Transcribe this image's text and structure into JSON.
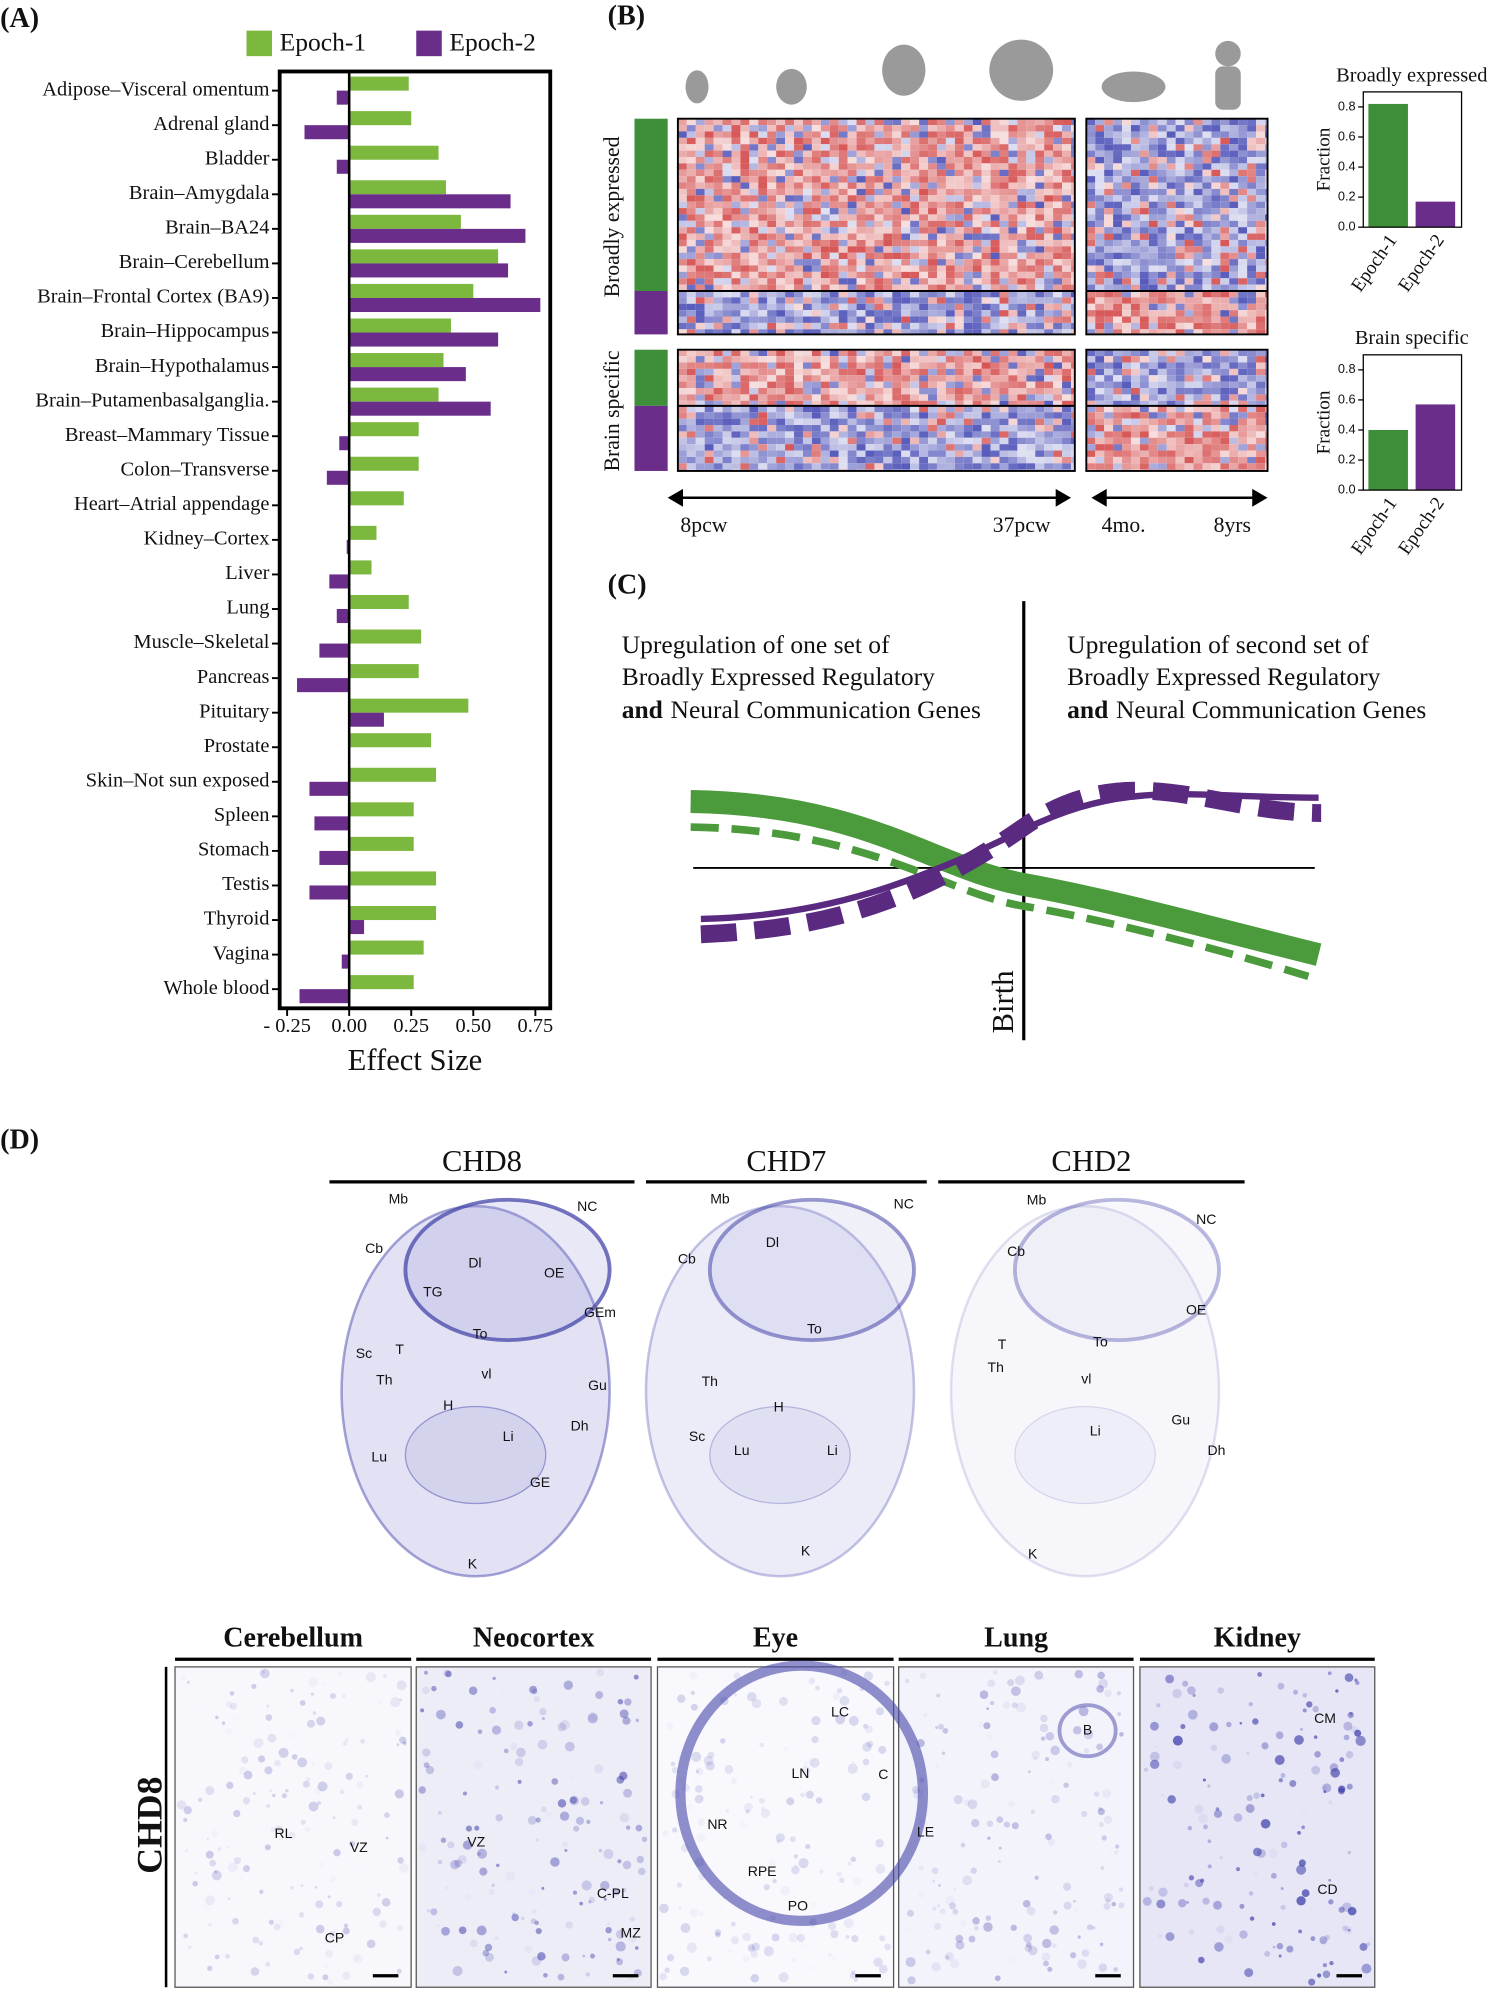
{
  "panel_labels": [
    "(A)",
    "(B)",
    "(C)",
    "(D)"
  ],
  "chart_data": [
    {
      "type": "hbar",
      "xlabel": "Effect Size",
      "categories": [
        "Adipose–Visceral omentum",
        "Adrenal gland",
        "Bladder",
        "Brain–Amygdala",
        "Brain–BA24",
        "Brain–Cerebellum",
        "Brain–Frontal Cortex (BA9)",
        "Brain–Hippocampus",
        "Brain–Hypothalamus",
        "Brain–Putamenbasalganglia.",
        "Breast–Mammary Tissue",
        "Colon–Transverse",
        "Heart–Atrial appendage",
        "Kidney–Cortex",
        "Liver",
        "Lung",
        "Muscle–Skeletal",
        "Pancreas",
        "Pituitary",
        "Prostate",
        "Skin–Not sun exposed",
        "Spleen",
        "Stomach",
        "Testis",
        "Thyroid",
        "Vagina",
        "Whole blood"
      ],
      "series": [
        {
          "name": "Epoch-1",
          "color": "#7cb83e",
          "values": [
            0.24,
            0.25,
            0.36,
            0.39,
            0.45,
            0.6,
            0.5,
            0.41,
            0.38,
            0.36,
            0.28,
            0.28,
            0.22,
            0.11,
            0.09,
            0.24,
            0.29,
            0.28,
            0.48,
            0.33,
            0.35,
            0.26,
            0.26,
            0.35,
            0.35,
            0.3,
            0.26
          ]
        },
        {
          "name": "Epoch-2",
          "color": "#6a2d8a",
          "values": [
            -0.05,
            -0.18,
            -0.05,
            0.65,
            0.71,
            0.64,
            0.77,
            0.6,
            0.47,
            0.57,
            -0.04,
            -0.09,
            0,
            -0.01,
            -0.08,
            -0.05,
            -0.12,
            -0.21,
            0.14,
            0,
            -0.16,
            -0.14,
            -0.12,
            -0.16,
            0.06,
            -0.03,
            -0.2
          ]
        }
      ],
      "xlim": [
        -0.28,
        0.81
      ],
      "xticks": [
        {
          "value": -0.25,
          "label": "- 0.25"
        },
        {
          "value": 0,
          "label": "0.00"
        },
        {
          "value": 0.25,
          "label": "0.25"
        },
        {
          "value": 0.5,
          "label": "0.50"
        },
        {
          "value": 0.75,
          "label": "0.75"
        }
      ]
    },
    {
      "type": "bar",
      "title": "Broadly expressed",
      "ylabel": "Fraction",
      "categories": [
        "Epoch-1",
        "Epoch-2"
      ],
      "values": [
        0.82,
        0.17
      ],
      "colors": [
        "#3f8f3a",
        "#6a2d8a"
      ],
      "ylim": [
        0,
        0.9
      ],
      "yticks": [
        {
          "value": 0,
          "label": "0.0"
        },
        {
          "value": 0.2,
          "label": "0.2"
        },
        {
          "value": 0.4,
          "label": "0.4"
        },
        {
          "value": 0.6,
          "label": "0.6"
        },
        {
          "value": 0.8,
          "label": "0.8"
        }
      ]
    },
    {
      "type": "bar",
      "title": "Brain specific",
      "ylabel": "Fraction",
      "categories": [
        "Epoch-1",
        "Epoch-2"
      ],
      "values": [
        0.4,
        0.57
      ],
      "colors": [
        "#3f8f3a",
        "#6a2d8a"
      ],
      "ylim": [
        0,
        0.9
      ],
      "yticks": [
        {
          "value": 0,
          "label": "0.0"
        },
        {
          "value": 0.2,
          "label": "0.2"
        },
        {
          "value": 0.4,
          "label": "0.4"
        },
        {
          "value": 0.6,
          "label": "0.6"
        },
        {
          "value": 0.8,
          "label": "0.8"
        }
      ]
    }
  ],
  "panel_b_heatmap": {
    "row_groups": [
      "Broadly expressed",
      "Brain specific"
    ],
    "time_labels": [
      "8pcw",
      "37pcw",
      "4mo.",
      "8yrs"
    ]
  },
  "panel_c": {
    "left_text": {
      "line1": "Upregulation of one set of",
      "line2": "Broadly Expressed Regulatory",
      "bold": "and",
      "rest": "Neural Communication Genes"
    },
    "right_text": {
      "line1": "Upregulation of second set of",
      "line2": "Broadly Expressed Regulatory",
      "bold": "and",
      "rest": "Neural Communication Genes"
    },
    "birth": "Birth"
  },
  "panel_d": {
    "genes": [
      "CHD8",
      "CHD7",
      "CHD2"
    ],
    "section_labels": [
      [
        "Mb",
        "NC",
        "Cb",
        "Dl",
        "OE",
        "GEm",
        "TG",
        "Sc",
        "T",
        "To",
        "Th",
        "vl",
        "Gu",
        "H",
        "Dh",
        "Lu",
        "Li",
        "GE",
        "K"
      ],
      [
        "Mb",
        "NC",
        "Dl",
        "Cb",
        "To",
        "Th",
        "H",
        "Sc",
        "Lu",
        "Li",
        "K"
      ],
      [
        "Mb",
        "NC",
        "Cb",
        "OE",
        "T",
        "To",
        "Th",
        "vl",
        "Li",
        "Gu",
        "Dh",
        "K"
      ]
    ],
    "tissue_gene": "CHD8",
    "tissues": [
      "Cerebellum",
      "Neocortex",
      "Eye",
      "Lung",
      "Kidney"
    ],
    "tissue_labels": [
      [
        "RL",
        "VZ",
        "CP"
      ],
      [
        "VZ",
        "C-PL",
        "MZ"
      ],
      [
        "LC",
        "LN",
        "C",
        "NR",
        "RPE",
        "PO"
      ],
      [
        "B",
        "LE"
      ],
      [
        "CM",
        "CD"
      ]
    ]
  }
}
